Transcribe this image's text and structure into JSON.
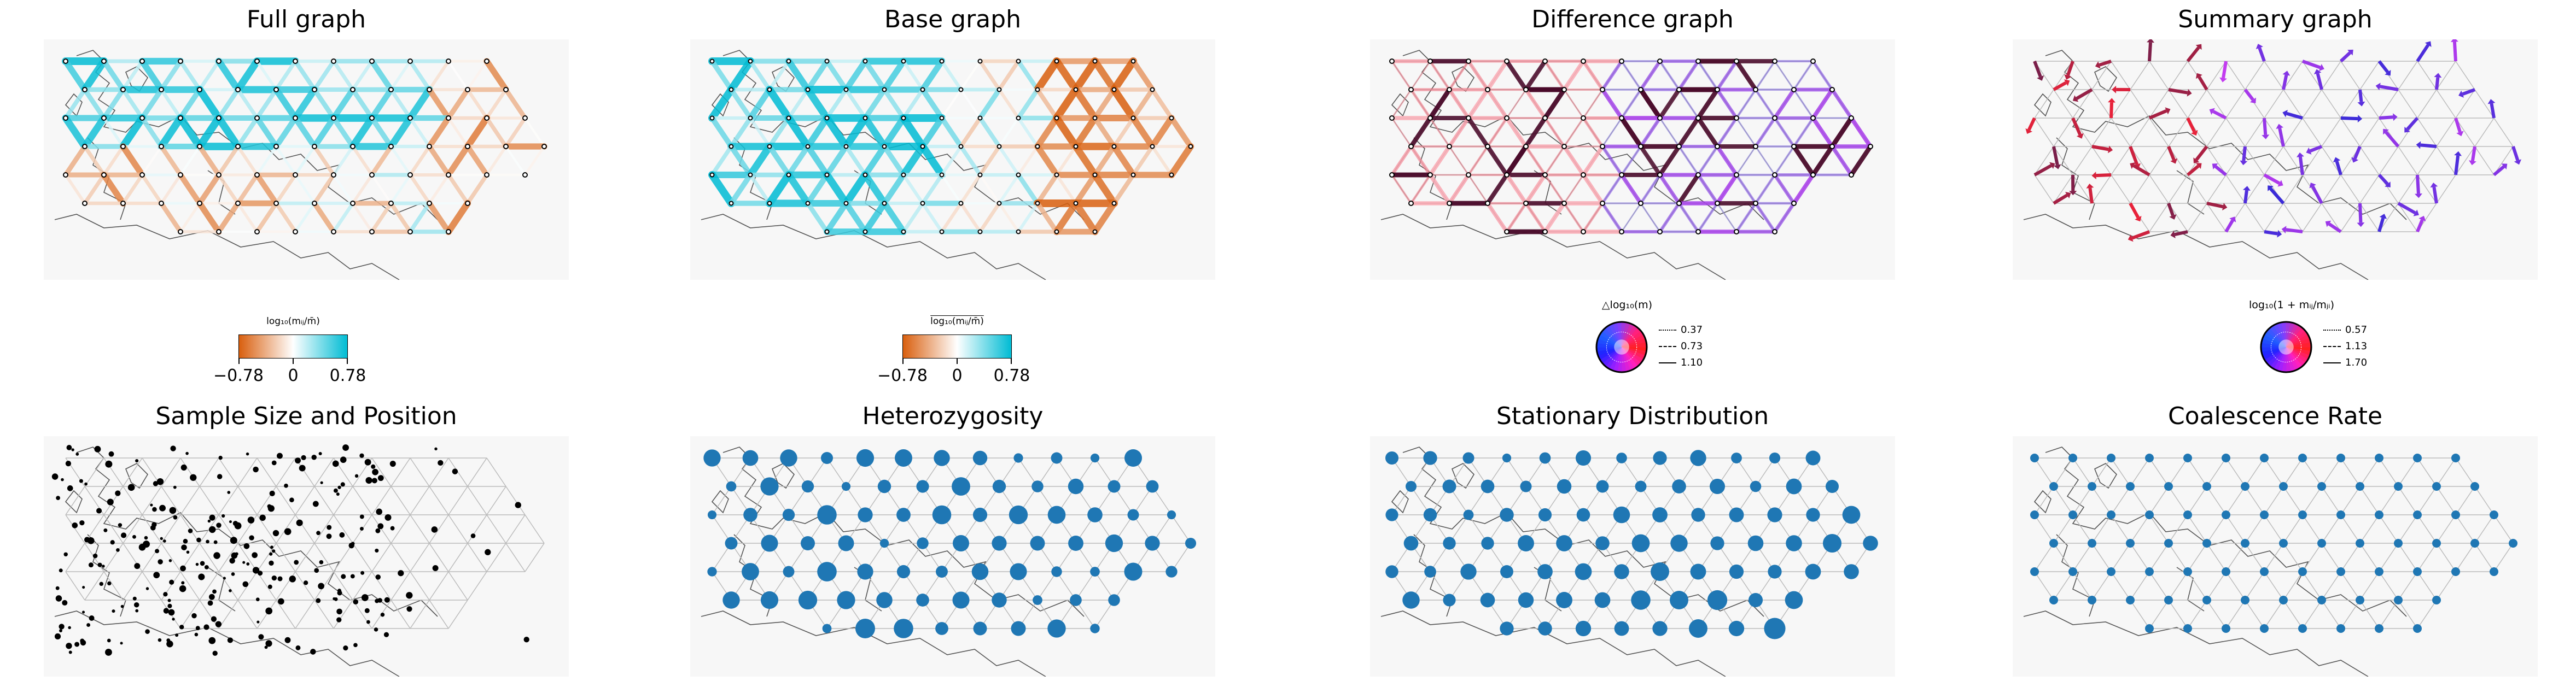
{
  "panels": {
    "full": {
      "title": "Full graph"
    },
    "base": {
      "title": "Base graph"
    },
    "difference": {
      "title": "Difference graph"
    },
    "summary": {
      "title": "Summary graph"
    },
    "sample": {
      "title": "Sample Size and Position"
    },
    "heterozygosity": {
      "title": "Heterozygosity"
    },
    "stationary": {
      "title": "Stationary Distribution"
    },
    "coalescence": {
      "title": "Coalescence Rate"
    }
  },
  "colorbars": {
    "full": {
      "label": "log₁₀(mᵢⱼ/m̄)",
      "ticks": [
        "−0.78",
        "0",
        "0.78"
      ],
      "low_color": "#d95f0e",
      "mid_color": "#ffffff",
      "high_color": "#00bcd4"
    },
    "base": {
      "label": "log₁₀(mᵢⱼ/m̄)",
      "ticks": [
        "−0.78",
        "0",
        "0.78"
      ],
      "low_color": "#d95f0e",
      "mid_color": "#ffffff",
      "high_color": "#00bcd4"
    }
  },
  "wheel_legends": {
    "difference": {
      "label": "△log₁₀(m)",
      "rows": [
        {
          "style": "dotted",
          "value": "0.37"
        },
        {
          "style": "dashed",
          "value": "0.73"
        },
        {
          "style": "solid",
          "value": "1.10"
        }
      ]
    },
    "summary": {
      "label": "log₁₀(1 + mᵢⱼ/mⱼᵢ)",
      "rows": [
        {
          "style": "dotted",
          "value": "0.57"
        },
        {
          "style": "dashed",
          "value": "1.13"
        },
        {
          "style": "solid",
          "value": "1.70"
        }
      ]
    }
  },
  "colors": {
    "background": "#f7f7f7",
    "grid_edge": "#bbbbbb",
    "node_blue": "#1f77b4",
    "orange": "#d95f0e",
    "cyan": "#00bcd4",
    "red": "#e8223a",
    "blue": "#3a2bd8",
    "magenta": "#c43cf0",
    "coast": "#555555"
  },
  "chart_data": [
    {
      "type": "network-map",
      "title": "Full graph",
      "edge_color_scale": {
        "min": -0.78,
        "center": 0,
        "max": 0.78,
        "low": "orange",
        "high": "cyan"
      },
      "pattern": "diverging edges: cyan north and east, orange south and far east"
    },
    {
      "type": "network-map",
      "title": "Base graph",
      "edge_color_scale": {
        "min": -0.78,
        "center": 0,
        "max": 0.78,
        "low": "orange",
        "high": "cyan"
      },
      "pattern": "cyan in west, orange in southeast"
    },
    {
      "type": "network-map",
      "title": "Difference graph",
      "legend_values": [
        0.37,
        0.73,
        1.1
      ],
      "pattern": "directed arrows, red in west, blue and purple in east"
    },
    {
      "type": "network-map",
      "title": "Summary graph",
      "legend_values": [
        0.57,
        1.13,
        1.7
      ],
      "pattern": "net-direction arrows per node"
    },
    {
      "type": "scatter-map",
      "title": "Sample Size and Position",
      "pattern": "black points, dense in western half"
    },
    {
      "type": "node-size-map",
      "title": "Heterozygosity",
      "pattern": "larger nodes in west and east"
    },
    {
      "type": "node-size-map",
      "title": "Stationary Distribution",
      "pattern": "largest nodes in southeast"
    },
    {
      "type": "node-size-map",
      "title": "Coalescence Rate",
      "pattern": "uniform small nodes"
    }
  ]
}
